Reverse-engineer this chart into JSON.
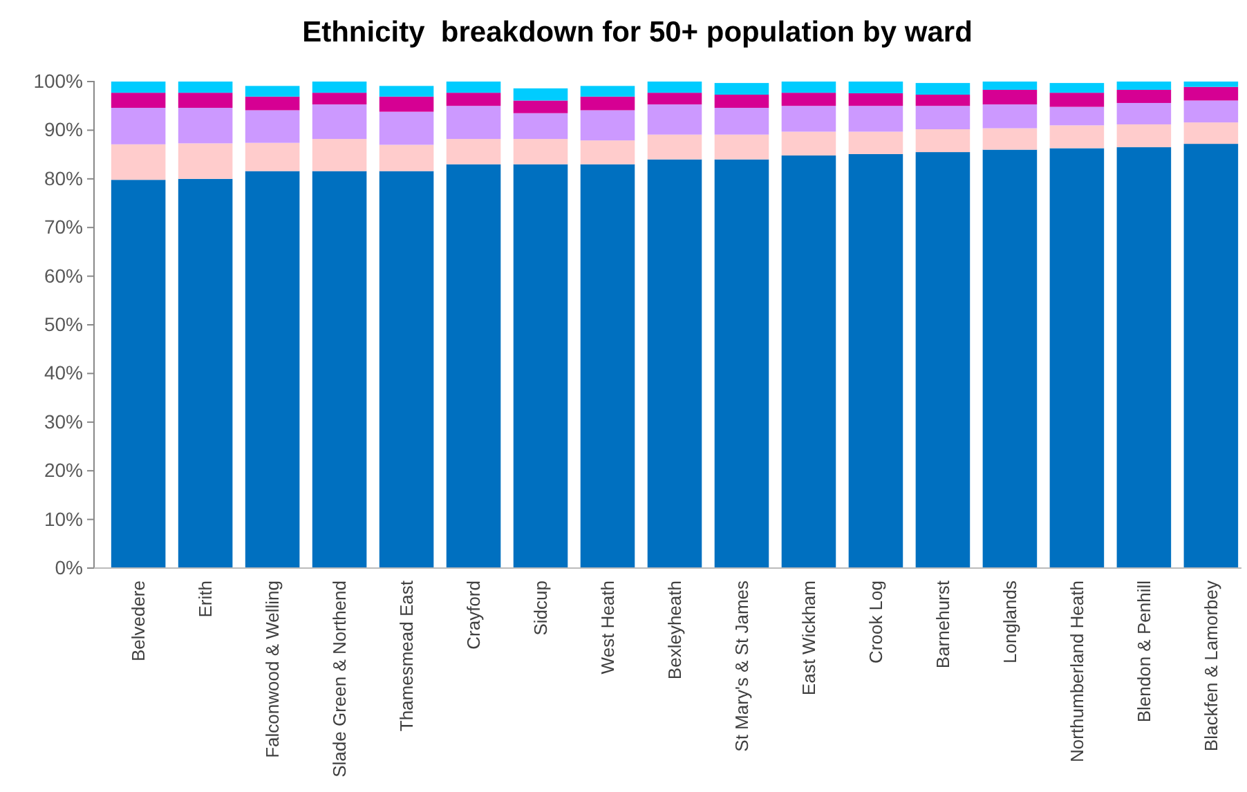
{
  "chart_data": {
    "type": "bar",
    "title": "Ethnicity  breakdown for 50+ population by ward",
    "stacked": true,
    "categories": [
      "Belvedere",
      "Erith",
      "Falconwood & Welling",
      "Slade Green & Northend",
      "Thamesmead East",
      "Crayford",
      "Sidcup",
      "West Heath",
      "Bexleyheath",
      "St Mary's & St James",
      "East Wickham",
      "Crook Log",
      "Barnehurst",
      "Longlands",
      "Northumberland Heath",
      "Blendon & Penhill",
      "Blackfen & Lamorbey"
    ],
    "series": [
      {
        "color": "#0070c0",
        "values": [
          79.8,
          80.0,
          81.6,
          81.6,
          81.6,
          83.0,
          83.0,
          83.0,
          84.0,
          84.0,
          84.8,
          85.1,
          85.5,
          86.0,
          86.3,
          86.5,
          87.2
        ]
      },
      {
        "color": "#ffcccc",
        "values": [
          7.3,
          7.3,
          5.8,
          6.6,
          5.4,
          5.2,
          5.2,
          4.9,
          5.1,
          5.1,
          4.9,
          4.6,
          4.7,
          4.4,
          4.7,
          4.7,
          4.4
        ]
      },
      {
        "color": "#cc99ff",
        "values": [
          7.5,
          7.3,
          6.7,
          7.1,
          6.8,
          6.8,
          5.3,
          6.2,
          6.2,
          5.5,
          5.3,
          5.3,
          4.8,
          4.9,
          3.8,
          4.4,
          4.5
        ]
      },
      {
        "color": "#d60093",
        "values": [
          3.1,
          3.1,
          2.8,
          2.4,
          3.1,
          2.7,
          2.6,
          2.8,
          2.4,
          2.7,
          2.7,
          2.6,
          2.3,
          3.0,
          2.9,
          2.7,
          2.8
        ]
      },
      {
        "color": "#00ccff",
        "values": [
          2.3,
          2.3,
          2.2,
          2.3,
          2.2,
          2.3,
          2.5,
          2.2,
          2.3,
          2.4,
          2.3,
          2.4,
          2.4,
          1.7,
          2.0,
          1.7,
          1.1
        ]
      }
    ],
    "ylim": [
      0,
      100
    ],
    "yticks": [
      {
        "value": 0,
        "label": "0%"
      },
      {
        "value": 10,
        "label": "10%"
      },
      {
        "value": 20,
        "label": "20%"
      },
      {
        "value": 30,
        "label": "30%"
      },
      {
        "value": 40,
        "label": "40%"
      },
      {
        "value": 50,
        "label": "50%"
      },
      {
        "value": 60,
        "label": "60%"
      },
      {
        "value": 70,
        "label": "70%"
      },
      {
        "value": 80,
        "label": "80%"
      },
      {
        "value": 90,
        "label": "90%"
      },
      {
        "value": 100,
        "label": "100%"
      }
    ],
    "grid": false
  }
}
